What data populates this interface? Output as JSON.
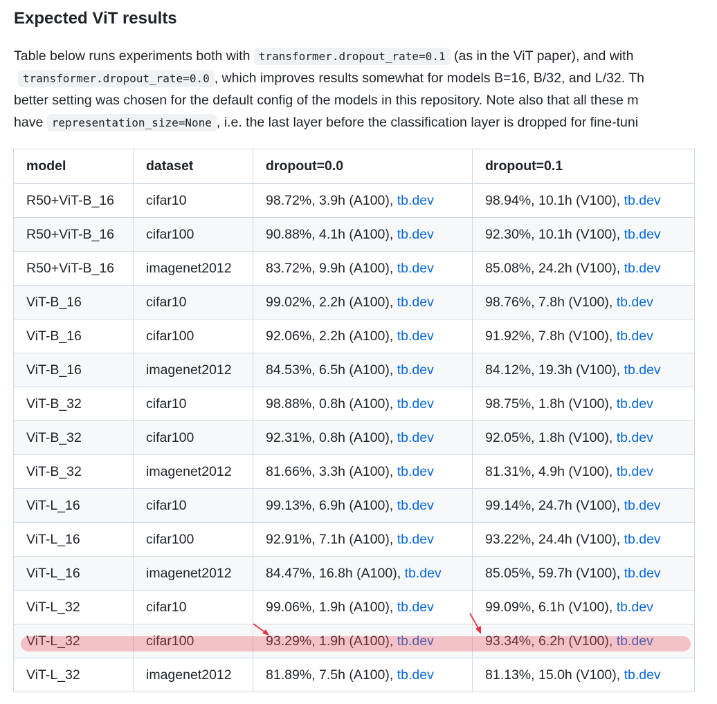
{
  "heading": "Expected ViT results",
  "paragraph": {
    "line1_pre": "Table below runs experiments both with ",
    "code1": "transformer.dropout_rate=0.1",
    "line1_post": " (as in the ViT paper), and with",
    "code2": "transformer.dropout_rate=0.0",
    "line2_post": ", which improves results somewhat for models B=16, B/32, and L/32. Th",
    "line3": "better setting was chosen for the default config of the models in this repository. Note also that all these m",
    "line4_pre": "have ",
    "code3": "representation_size=None",
    "line4_post": ", i.e. the last layer before the classification layer is dropped for fine-tuni"
  },
  "table": {
    "headers": [
      "model",
      "dataset",
      "dropout=0.0",
      "dropout=0.1"
    ],
    "link_text": "tb.dev",
    "rows": [
      {
        "model": "R50+ViT-B_16",
        "dataset": "cifar10",
        "d0": "98.72%, 3.9h (A100), ",
        "d1": "98.94%, 10.1h (V100), "
      },
      {
        "model": "R50+ViT-B_16",
        "dataset": "cifar100",
        "d0": "90.88%, 4.1h (A100), ",
        "d1": "92.30%, 10.1h (V100), "
      },
      {
        "model": "R50+ViT-B_16",
        "dataset": "imagenet2012",
        "d0": "83.72%, 9.9h (A100), ",
        "d1": "85.08%, 24.2h (V100), "
      },
      {
        "model": "ViT-B_16",
        "dataset": "cifar10",
        "d0": "99.02%, 2.2h (A100), ",
        "d1": "98.76%, 7.8h (V100), "
      },
      {
        "model": "ViT-B_16",
        "dataset": "cifar100",
        "d0": "92.06%, 2.2h (A100), ",
        "d1": "91.92%, 7.8h (V100), "
      },
      {
        "model": "ViT-B_16",
        "dataset": "imagenet2012",
        "d0": "84.53%, 6.5h (A100), ",
        "d1": "84.12%, 19.3h (V100), "
      },
      {
        "model": "ViT-B_32",
        "dataset": "cifar10",
        "d0": "98.88%, 0.8h (A100), ",
        "d1": "98.75%, 1.8h (V100), "
      },
      {
        "model": "ViT-B_32",
        "dataset": "cifar100",
        "d0": "92.31%, 0.8h (A100), ",
        "d1": "92.05%, 1.8h (V100), "
      },
      {
        "model": "ViT-B_32",
        "dataset": "imagenet2012",
        "d0": "81.66%, 3.3h (A100), ",
        "d1": "81.31%, 4.9h (V100), "
      },
      {
        "model": "ViT-L_16",
        "dataset": "cifar10",
        "d0": "99.13%, 6.9h (A100), ",
        "d1": "99.14%, 24.7h (V100), "
      },
      {
        "model": "ViT-L_16",
        "dataset": "cifar100",
        "d0": "92.91%, 7.1h (A100), ",
        "d1": "93.22%, 24.4h (V100), "
      },
      {
        "model": "ViT-L_16",
        "dataset": "imagenet2012",
        "d0": "84.47%, 16.8h (A100), ",
        "d1": "85.05%, 59.7h (V100), "
      },
      {
        "model": "ViT-L_32",
        "dataset": "cifar10",
        "d0": "99.06%, 1.9h (A100), ",
        "d1": "99.09%, 6.1h (V100), "
      },
      {
        "model": "ViT-L_32",
        "dataset": "cifar100",
        "d0": "93.29%, 1.9h (A100), ",
        "d1": "93.34%, 6.2h (V100), "
      },
      {
        "model": "ViT-L_32",
        "dataset": "imagenet2012",
        "d0": "81.89%, 7.5h (A100), ",
        "d1": "81.13%, 15.0h (V100), "
      }
    ]
  },
  "annotation": {
    "highlight_color": "#f0505a",
    "arrow_color": "#e8333e",
    "arrow_icon": "red-arrow-icon"
  }
}
